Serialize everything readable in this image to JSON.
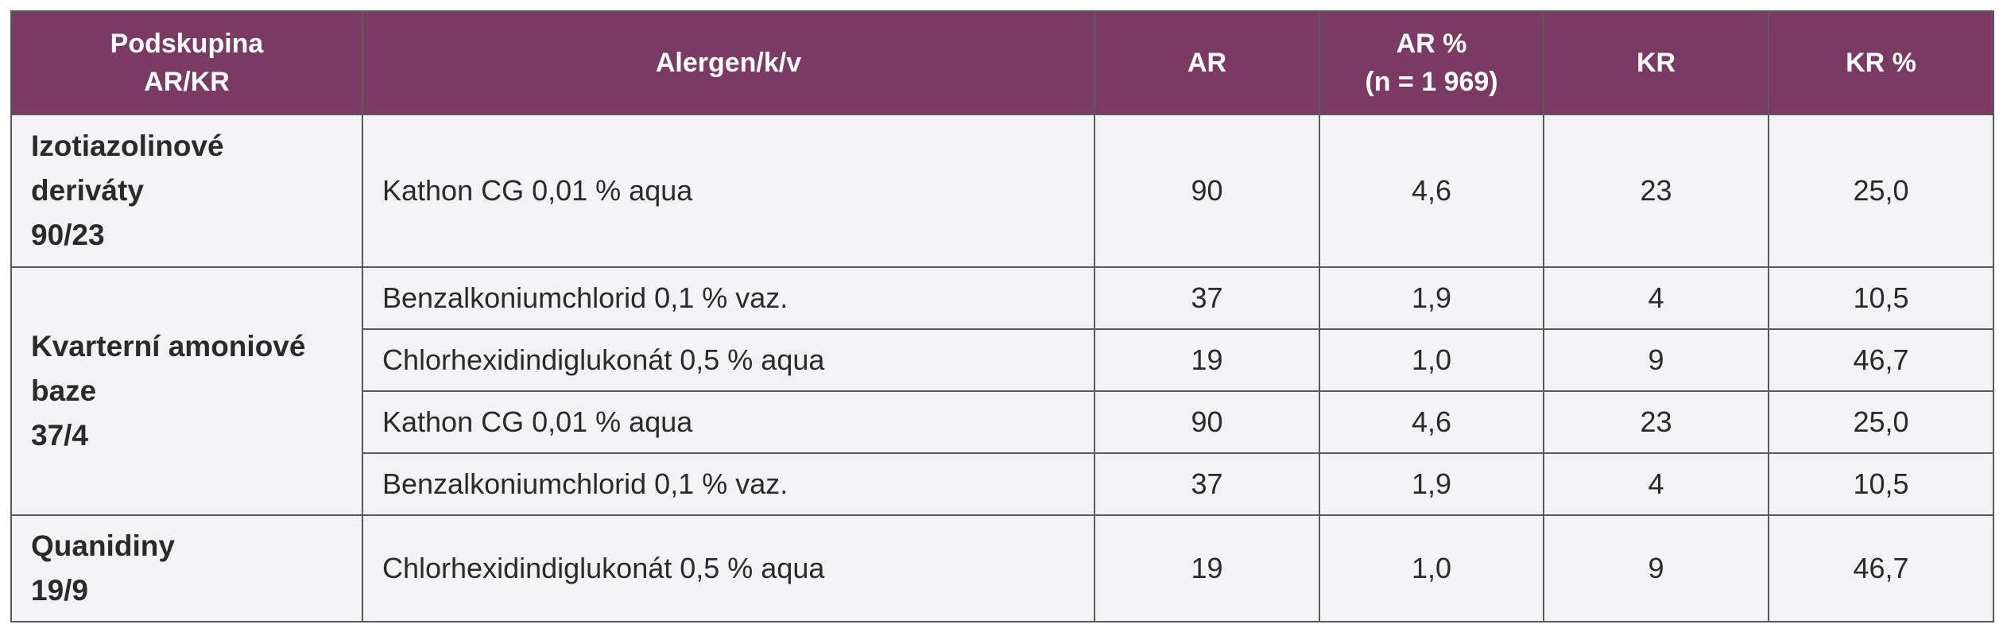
{
  "table": {
    "header": [
      [
        "Podskupina",
        "AR/KR"
      ],
      [
        "Alergen/k/v"
      ],
      [
        "AR"
      ],
      [
        "AR %",
        "(n = 1 969)"
      ],
      [
        "KR"
      ],
      [
        "KR %"
      ]
    ],
    "groups": [
      {
        "label": [
          "Izotiazolinové",
          "deriváty",
          "90/23"
        ],
        "rows": [
          [
            "Kathon CG 0,01 % aqua",
            90,
            "4,6",
            23,
            "25,0"
          ]
        ]
      },
      {
        "label": [
          "Kvarterní amoniové",
          "baze",
          "37/4"
        ],
        "rows": [
          [
            "Benzalkoniumchlorid  0,1 % vaz.",
            37,
            "1,9",
            4,
            "10,5"
          ],
          [
            "Chlorhexidindiglukonát  0,5 % aqua",
            19,
            "1,0",
            9,
            "46,7"
          ],
          [
            "Kathon CG 0,01 % aqua",
            90,
            "4,6",
            23,
            "25,0"
          ],
          [
            "Benzalkoniumchlorid  0,1 % vaz.",
            37,
            "1,9",
            4,
            "10,5"
          ]
        ]
      },
      {
        "label": [
          "Quanidiny",
          "19/9"
        ],
        "rows": [
          [
            "Chlorhexidindiglukonát  0,5 % aqua",
            19,
            "1,0",
            9,
            "46,7"
          ]
        ]
      }
    ]
  }
}
